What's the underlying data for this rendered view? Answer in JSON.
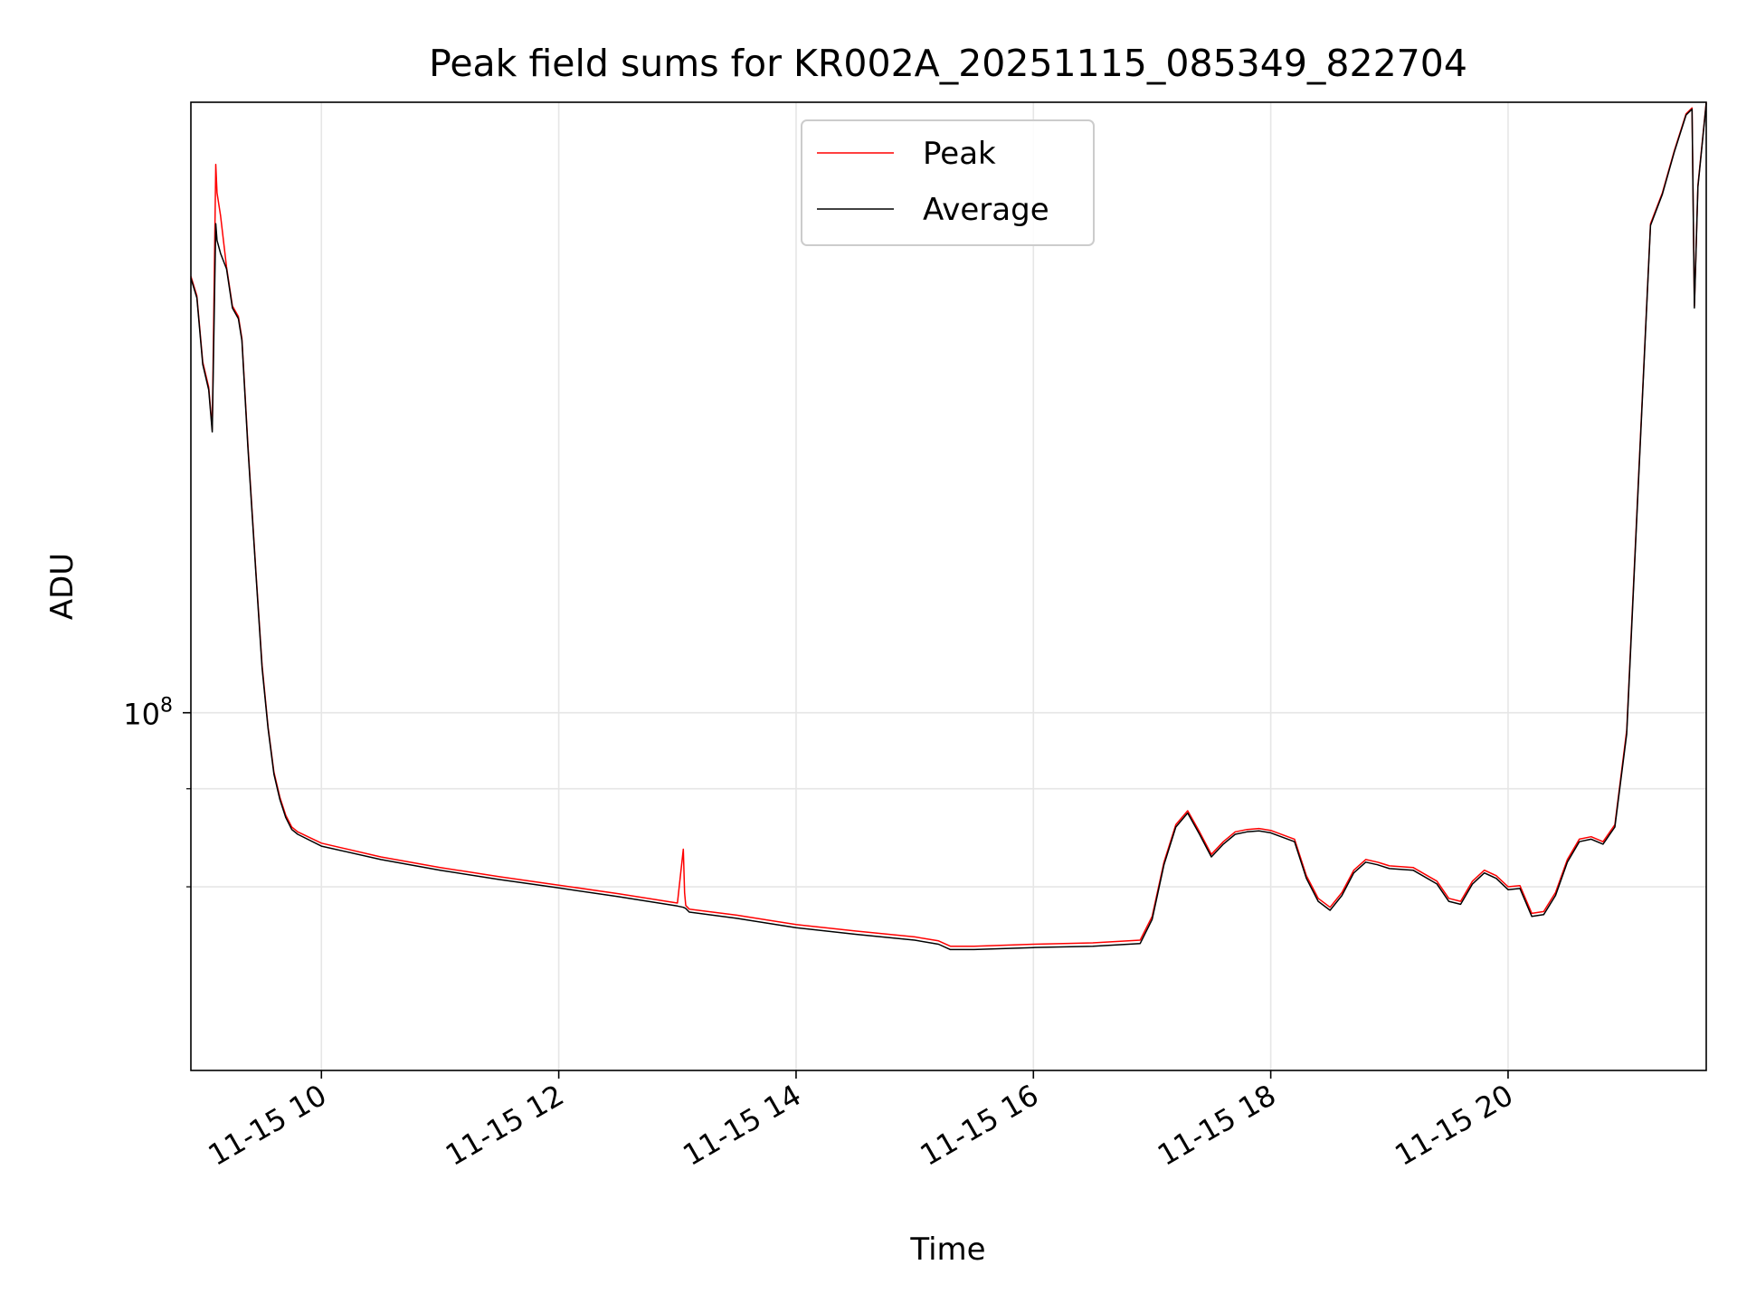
{
  "chart_data": {
    "type": "line",
    "title": "Peak field sums for KR002A_20251115_085349_822704",
    "xlabel": "Time",
    "ylabel": "ADU",
    "yscale": "log",
    "ylim": [
      35000000,
      600000000
    ],
    "xlim": [
      8.9,
      21.67
    ],
    "x_ticks": [
      {
        "value": 10,
        "label": "11-15 10"
      },
      {
        "value": 12,
        "label": "11-15 12"
      },
      {
        "value": 14,
        "label": "11-15 14"
      },
      {
        "value": 16,
        "label": "11-15 16"
      },
      {
        "value": 18,
        "label": "11-15 18"
      },
      {
        "value": 20,
        "label": "11-15 20"
      }
    ],
    "y_major_ticks": [
      {
        "value": 100000000,
        "base": "10",
        "exponent": "8"
      }
    ],
    "y_minor_ticks": [
      60000000,
      80000000
    ],
    "grid": true,
    "legend": {
      "position": "top-center",
      "entries": [
        "Peak",
        "Average"
      ]
    },
    "series": [
      {
        "name": "Peak",
        "color": "#ff0000",
        "x": [
          8.9,
          8.95,
          9.0,
          9.05,
          9.08,
          9.11,
          9.12,
          9.15,
          9.2,
          9.25,
          9.3,
          9.33,
          9.38,
          9.45,
          9.5,
          9.55,
          9.6,
          9.65,
          9.7,
          9.75,
          9.8,
          10.0,
          10.5,
          11.0,
          11.5,
          12.0,
          12.5,
          13.0,
          13.05,
          13.06,
          13.07,
          13.1,
          13.5,
          14.0,
          14.5,
          15.0,
          15.2,
          15.3,
          15.5,
          16.0,
          16.5,
          16.9,
          17.0,
          17.1,
          17.2,
          17.3,
          17.4,
          17.5,
          17.6,
          17.7,
          17.8,
          17.9,
          18.0,
          18.2,
          18.3,
          18.4,
          18.5,
          18.6,
          18.7,
          18.8,
          18.9,
          19.0,
          19.2,
          19.4,
          19.5,
          19.6,
          19.7,
          19.8,
          19.9,
          20.0,
          20.1,
          20.2,
          20.3,
          20.4,
          20.5,
          20.6,
          20.7,
          20.8,
          20.9,
          21.0,
          21.1,
          21.2,
          21.3,
          21.4,
          21.5,
          21.55,
          21.57,
          21.6,
          21.67
        ],
        "values": [
          360000000,
          340000000,
          280000000,
          260000000,
          230000000,
          500000000,
          460000000,
          430000000,
          370000000,
          330000000,
          320000000,
          300000000,
          220000000,
          150000000,
          115000000,
          96000000,
          84000000,
          78000000,
          74000000,
          71500000,
          70500000,
          68200000,
          65500000,
          63500000,
          61800000,
          60300000,
          58800000,
          57200000,
          67000000,
          59000000,
          56800000,
          56200000,
          55200000,
          53700000,
          52700000,
          51800000,
          51200000,
          50400000,
          50400000,
          50700000,
          50900000,
          51300000,
          55000000,
          64500000,
          72000000,
          75000000,
          70500000,
          66000000,
          68500000,
          70500000,
          71000000,
          71200000,
          70800000,
          69000000,
          62000000,
          58000000,
          56500000,
          59000000,
          63000000,
          65000000,
          64500000,
          63800000,
          63500000,
          61000000,
          58000000,
          57500000,
          61000000,
          63000000,
          62000000,
          60000000,
          60200000,
          55500000,
          55800000,
          59000000,
          65000000,
          69000000,
          69500000,
          68500000,
          72000000,
          95000000,
          200000000,
          420000000,
          460000000,
          520000000,
          580000000,
          590000000,
          330000000,
          470000000,
          600000000
        ]
      },
      {
        "name": "Average",
        "color": "#000000",
        "x": [
          8.9,
          8.95,
          9.0,
          9.05,
          9.08,
          9.11,
          9.12,
          9.15,
          9.2,
          9.25,
          9.3,
          9.33,
          9.38,
          9.45,
          9.5,
          9.55,
          9.6,
          9.65,
          9.7,
          9.75,
          9.8,
          10.0,
          10.5,
          11.0,
          11.5,
          12.0,
          12.5,
          13.0,
          13.05,
          13.06,
          13.07,
          13.1,
          13.5,
          14.0,
          14.5,
          15.0,
          15.2,
          15.3,
          15.5,
          16.0,
          16.5,
          16.9,
          17.0,
          17.1,
          17.2,
          17.3,
          17.4,
          17.5,
          17.6,
          17.7,
          17.8,
          17.9,
          18.0,
          18.2,
          18.3,
          18.4,
          18.5,
          18.6,
          18.7,
          18.8,
          18.9,
          19.0,
          19.2,
          19.4,
          19.5,
          19.6,
          19.7,
          19.8,
          19.9,
          20.0,
          20.1,
          20.2,
          20.3,
          20.4,
          20.5,
          20.6,
          20.7,
          20.8,
          20.9,
          21.0,
          21.1,
          21.2,
          21.3,
          21.4,
          21.5,
          21.55,
          21.57,
          21.6,
          21.67
        ],
        "values": [
          358000000,
          338000000,
          278000000,
          258000000,
          228000000,
          420000000,
          400000000,
          385000000,
          368000000,
          328000000,
          318000000,
          298000000,
          218000000,
          149000000,
          114000000,
          95500000,
          83500000,
          77500000,
          73500000,
          71000000,
          70000000,
          67600000,
          65000000,
          63000000,
          61300000,
          59800000,
          58300000,
          56700000,
          56500000,
          56400000,
          56300000,
          55700000,
          54700000,
          53200000,
          52200000,
          51300000,
          50700000,
          49900000,
          49900000,
          50200000,
          50400000,
          50800000,
          54500000,
          64000000,
          71500000,
          74500000,
          70000000,
          65500000,
          68000000,
          70000000,
          70500000,
          70700000,
          70300000,
          68500000,
          61500000,
          57500000,
          56000000,
          58500000,
          62500000,
          64500000,
          64000000,
          63300000,
          63000000,
          60500000,
          57500000,
          57000000,
          60500000,
          62500000,
          61500000,
          59500000,
          59700000,
          55000000,
          55300000,
          58500000,
          64500000,
          68500000,
          69000000,
          68000000,
          71500000,
          94000000,
          198000000,
          418000000,
          458000000,
          518000000,
          578000000,
          588000000,
          328000000,
          468000000,
          598000000
        ]
      }
    ]
  }
}
